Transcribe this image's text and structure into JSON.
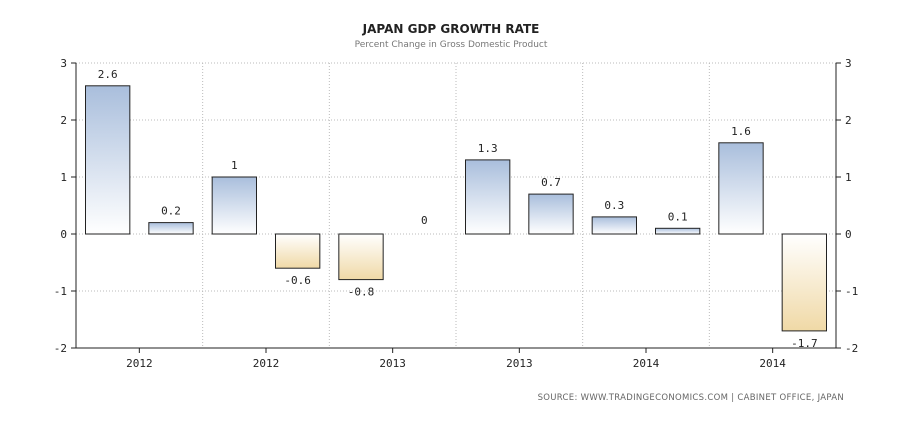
{
  "chart_data": {
    "type": "bar",
    "title": "JAPAN GDP GROWTH RATE",
    "subtitle": "Percent Change in Gross Domestic Product",
    "source": "SOURCE: WWW.TRADINGECONOMICS.COM  |  CABINET OFFICE, JAPAN",
    "values": [
      2.6,
      0.2,
      1,
      -0.6,
      -0.8,
      0,
      1.3,
      0.7,
      0.3,
      0.1,
      1.6,
      -1.7
    ],
    "value_labels": [
      "2.6",
      "0.2",
      "1",
      "-0.6",
      "-0.8",
      "0",
      "1.3",
      "0.7",
      "0.3",
      "0.1",
      "1.6",
      "-1.7"
    ],
    "x_tick_labels": [
      "2012",
      "2012",
      "2013",
      "2013",
      "2014",
      "2014"
    ],
    "ylim": [
      -2,
      3
    ],
    "yticks": [
      3,
      2,
      1,
      0,
      -1,
      -2
    ],
    "grid": true,
    "colors": {
      "positive_top": "#a9bedc",
      "positive_bottom": "#ffffff",
      "negative_top": "#ffffff",
      "negative_bottom": "#f0d9a6",
      "bar_stroke": "#222222",
      "grid": "#bbbbbb"
    }
  }
}
